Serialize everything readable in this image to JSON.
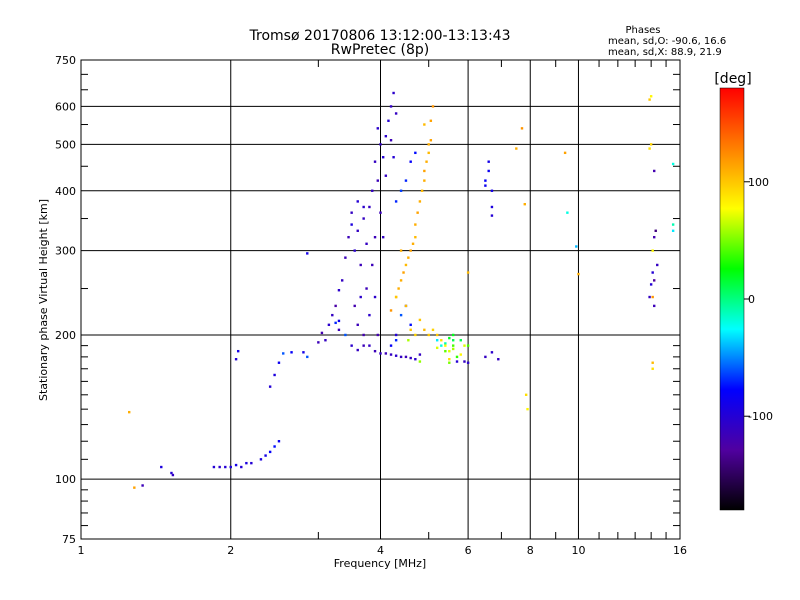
{
  "chart_data": {
    "type": "scatter",
    "title_line1": "Tromsø 20170806 13:12:00-13:13:43",
    "title_line2": "RwPretec (8p)",
    "xlabel": "Frequency [MHz]",
    "ylabel": "Stationary phase Virtual Height [km]",
    "x_scale": "log",
    "y_scale": "log",
    "xlim": [
      1,
      16
    ],
    "ylim": [
      75,
      750
    ],
    "x_ticks": [
      {
        "value": 1,
        "label": "1"
      },
      {
        "value": 2,
        "label": "2"
      },
      {
        "value": 4,
        "label": "4"
      },
      {
        "value": 6,
        "label": "6"
      },
      {
        "value": 8,
        "label": "8"
      },
      {
        "value": 10,
        "label": "10"
      },
      {
        "value": 16,
        "label": "16"
      }
    ],
    "y_ticks": [
      {
        "value": 75,
        "label": "75"
      },
      {
        "value": 100,
        "label": "100"
      },
      {
        "value": 200,
        "label": "200"
      },
      {
        "value": 300,
        "label": "300"
      },
      {
        "value": 400,
        "label": "400"
      },
      {
        "value": 500,
        "label": "500"
      },
      {
        "value": 600,
        "label": "600"
      },
      {
        "value": 750,
        "label": "750"
      }
    ],
    "grid": true,
    "stats": {
      "title": "Phases",
      "line_o": "mean, sd,O: -90.6, 16.6",
      "line_x": "mean, sd,X:  88.9, 21.9"
    },
    "colorbar": {
      "label": "[deg]",
      "range": [
        -180,
        180
      ],
      "ticks": [
        {
          "value": 100,
          "label": "100"
        },
        {
          "value": 0,
          "label": "0"
        },
        {
          "value": -100,
          "label": "-100"
        }
      ],
      "colors": [
        "#000000",
        "#5000a0",
        "#0000ff",
        "#00ffff",
        "#00ff00",
        "#ffff00",
        "#ff8000",
        "#ff0000"
      ]
    },
    "series": [
      {
        "points": [
          [
            1.33,
            97,
            -115
          ],
          [
            1.45,
            106,
            -95
          ],
          [
            1.52,
            103,
            -100
          ],
          [
            1.53,
            102,
            -110
          ],
          [
            1.85,
            106,
            -100
          ],
          [
            1.9,
            106,
            -105
          ],
          [
            1.95,
            106,
            -100
          ],
          [
            2.0,
            106,
            -95
          ],
          [
            2.05,
            107,
            -90
          ],
          [
            2.1,
            106,
            -100
          ],
          [
            2.15,
            108,
            -95
          ],
          [
            2.2,
            108,
            -100
          ],
          [
            2.3,
            110,
            -95
          ],
          [
            2.35,
            112,
            -90
          ],
          [
            2.4,
            114,
            -80
          ],
          [
            2.45,
            117,
            -75
          ],
          [
            2.5,
            120,
            -85
          ],
          [
            2.4,
            156,
            -100
          ],
          [
            2.45,
            165,
            -95
          ],
          [
            2.5,
            175,
            -85
          ],
          [
            2.55,
            183,
            -60
          ],
          [
            2.65,
            184,
            -80
          ],
          [
            2.8,
            184,
            -90
          ],
          [
            2.85,
            180,
            -60
          ],
          [
            2.05,
            178,
            -100
          ],
          [
            2.07,
            185,
            -90
          ],
          [
            2.85,
            296,
            -90
          ],
          [
            3.0,
            193,
            -115
          ],
          [
            3.05,
            202,
            -120
          ],
          [
            3.1,
            195,
            -110
          ],
          [
            3.15,
            210,
            -105
          ],
          [
            3.2,
            220,
            -110
          ],
          [
            3.25,
            230,
            -125
          ],
          [
            3.3,
            205,
            -115
          ],
          [
            3.3,
            248,
            -105
          ],
          [
            3.35,
            260,
            -110
          ],
          [
            3.4,
            290,
            -115
          ],
          [
            3.45,
            320,
            -115
          ],
          [
            3.5,
            360,
            -110
          ],
          [
            3.55,
            300,
            -105
          ],
          [
            3.55,
            230,
            -120
          ],
          [
            3.6,
            210,
            -115
          ],
          [
            3.6,
            330,
            -110
          ],
          [
            3.65,
            240,
            -105
          ],
          [
            3.65,
            280,
            -115
          ],
          [
            3.7,
            350,
            -110
          ],
          [
            3.7,
            200,
            -120
          ],
          [
            3.75,
            250,
            -115
          ],
          [
            3.75,
            310,
            -110
          ],
          [
            3.8,
            220,
            -105
          ],
          [
            3.8,
            370,
            -110
          ],
          [
            3.85,
            280,
            -115
          ],
          [
            3.85,
            400,
            -110
          ],
          [
            3.9,
            240,
            -105
          ],
          [
            3.9,
            320,
            -115
          ],
          [
            3.9,
            460,
            -110
          ],
          [
            3.95,
            200,
            -120
          ],
          [
            3.95,
            420,
            -115
          ],
          [
            3.95,
            540,
            -105
          ],
          [
            4.0,
            500,
            -110
          ],
          [
            4.0,
            360,
            -115
          ],
          [
            4.05,
            470,
            -100
          ],
          [
            4.05,
            320,
            -110
          ],
          [
            4.1,
            520,
            -105
          ],
          [
            4.1,
            430,
            -110
          ],
          [
            4.15,
            560,
            -100
          ],
          [
            4.2,
            600,
            -110
          ],
          [
            4.2,
            510,
            -115
          ],
          [
            4.25,
            640,
            -105
          ],
          [
            4.25,
            470,
            -100
          ],
          [
            4.3,
            580,
            -110
          ],
          [
            4.3,
            200,
            -100
          ],
          [
            3.5,
            340,
            -95
          ],
          [
            3.6,
            380,
            -100
          ],
          [
            3.7,
            370,
            -105
          ],
          [
            3.3,
            214,
            -85
          ],
          [
            3.25,
            212,
            -70
          ],
          [
            3.4,
            200,
            -60
          ],
          [
            3.5,
            190,
            -105
          ],
          [
            3.6,
            186,
            -110
          ],
          [
            3.7,
            190,
            -115
          ],
          [
            3.8,
            190,
            -110
          ],
          [
            3.9,
            185,
            -115
          ],
          [
            4.0,
            183,
            -110
          ],
          [
            4.1,
            183,
            -115
          ],
          [
            4.2,
            182,
            -110
          ],
          [
            4.3,
            181,
            -105
          ],
          [
            4.4,
            180,
            -110
          ],
          [
            4.5,
            180,
            -115
          ],
          [
            4.6,
            179,
            -110
          ],
          [
            4.7,
            178,
            -105
          ],
          [
            4.8,
            182,
            -110
          ],
          [
            4.2,
            190,
            -80
          ],
          [
            4.3,
            195,
            -70
          ],
          [
            5.7,
            176,
            -100
          ],
          [
            5.9,
            176,
            -110
          ],
          [
            6.0,
            175,
            -105
          ],
          [
            6.5,
            180,
            -110
          ],
          [
            6.7,
            184,
            -105
          ],
          [
            6.9,
            178,
            -110
          ],
          [
            6.7,
            355,
            -100
          ],
          [
            6.7,
            370,
            -95
          ],
          [
            6.7,
            400,
            -90
          ],
          [
            6.5,
            410,
            -85
          ],
          [
            6.5,
            420,
            -80
          ],
          [
            6.6,
            440,
            -85
          ],
          [
            6.6,
            460,
            -90
          ],
          [
            4.6,
            460,
            -80
          ],
          [
            4.7,
            480,
            -75
          ],
          [
            4.5,
            420,
            -70
          ],
          [
            4.4,
            400,
            -65
          ],
          [
            4.3,
            380,
            -70
          ],
          [
            4.4,
            220,
            -60
          ],
          [
            4.5,
            230,
            -70
          ],
          [
            4.6,
            210,
            -75
          ],
          [
            5.2,
            195,
            -30
          ],
          [
            5.3,
            190,
            -20
          ],
          [
            5.4,
            192,
            -10
          ],
          [
            5.5,
            197,
            20
          ],
          [
            5.6,
            195,
            10
          ],
          [
            14.2,
            440,
            -120
          ],
          [
            14.3,
            330,
            -140
          ],
          [
            14.2,
            320,
            -120
          ],
          [
            14.4,
            280,
            -110
          ],
          [
            14.1,
            270,
            -100
          ],
          [
            14.2,
            260,
            -130
          ],
          [
            13.9,
            240,
            -110
          ],
          [
            14.2,
            230,
            -115
          ],
          [
            14.0,
            255,
            -100
          ],
          [
            9.5,
            360,
            -20
          ],
          [
            9.9,
            306,
            -40
          ],
          [
            15.5,
            455,
            -20
          ],
          [
            15.5,
            340,
            -10
          ],
          [
            15.5,
            330,
            -30
          ]
        ]
      },
      {
        "points": [
          [
            1.25,
            138,
            110
          ],
          [
            1.28,
            96,
            115
          ],
          [
            4.4,
            260,
            110
          ],
          [
            4.45,
            270,
            115
          ],
          [
            4.5,
            280,
            105
          ],
          [
            4.55,
            290,
            110
          ],
          [
            4.6,
            300,
            115
          ],
          [
            4.65,
            310,
            110
          ],
          [
            4.7,
            320,
            105
          ],
          [
            4.7,
            340,
            110
          ],
          [
            4.75,
            360,
            115
          ],
          [
            4.8,
            380,
            110
          ],
          [
            4.85,
            400,
            105
          ],
          [
            4.9,
            420,
            110
          ],
          [
            4.9,
            440,
            115
          ],
          [
            4.95,
            460,
            110
          ],
          [
            5.0,
            480,
            105
          ],
          [
            5.0,
            500,
            110
          ],
          [
            5.05,
            510,
            115
          ],
          [
            5.1,
            600,
            120
          ],
          [
            5.05,
            560,
            115
          ],
          [
            4.9,
            550,
            105
          ],
          [
            4.2,
            225,
            120
          ],
          [
            4.3,
            240,
            115
          ],
          [
            4.35,
            250,
            110
          ],
          [
            4.5,
            230,
            105
          ],
          [
            4.6,
            205,
            100
          ],
          [
            4.7,
            200,
            95
          ],
          [
            4.8,
            215,
            100
          ],
          [
            4.9,
            205,
            105
          ],
          [
            5.0,
            200,
            100
          ],
          [
            5.1,
            205,
            95
          ],
          [
            5.2,
            200,
            100
          ],
          [
            5.3,
            195,
            90
          ],
          [
            5.4,
            190,
            80
          ],
          [
            5.5,
            185,
            70
          ],
          [
            5.6,
            187,
            60
          ],
          [
            5.5,
            175,
            50
          ],
          [
            5.4,
            185,
            45
          ],
          [
            5.6,
            190,
            40
          ],
          [
            5.7,
            180,
            35
          ],
          [
            5.8,
            182,
            80
          ],
          [
            5.9,
            190,
            70
          ],
          [
            5.5,
            178,
            90
          ],
          [
            6.0,
            270,
            105
          ],
          [
            6.0,
            190,
            40
          ],
          [
            4.55,
            195,
            60
          ],
          [
            4.3,
            240,
            100
          ],
          [
            4.4,
            300,
            110
          ],
          [
            7.5,
            490,
            110
          ],
          [
            7.7,
            540,
            120
          ],
          [
            7.8,
            375,
            110
          ],
          [
            7.85,
            150,
            90
          ],
          [
            7.9,
            140,
            80
          ],
          [
            9.4,
            480,
            115
          ],
          [
            10.0,
            268,
            110
          ],
          [
            13.9,
            620,
            100
          ],
          [
            14.0,
            630,
            80
          ],
          [
            13.9,
            490,
            90
          ],
          [
            14.0,
            500,
            95
          ],
          [
            14.1,
            300,
            80
          ],
          [
            14.1,
            240,
            120
          ],
          [
            14.1,
            175,
            105
          ],
          [
            14.1,
            170,
            90
          ],
          [
            5.6,
            200,
            20
          ],
          [
            5.8,
            195,
            10
          ],
          [
            4.8,
            176,
            55
          ],
          [
            5.2,
            188,
            70
          ]
        ]
      }
    ]
  }
}
